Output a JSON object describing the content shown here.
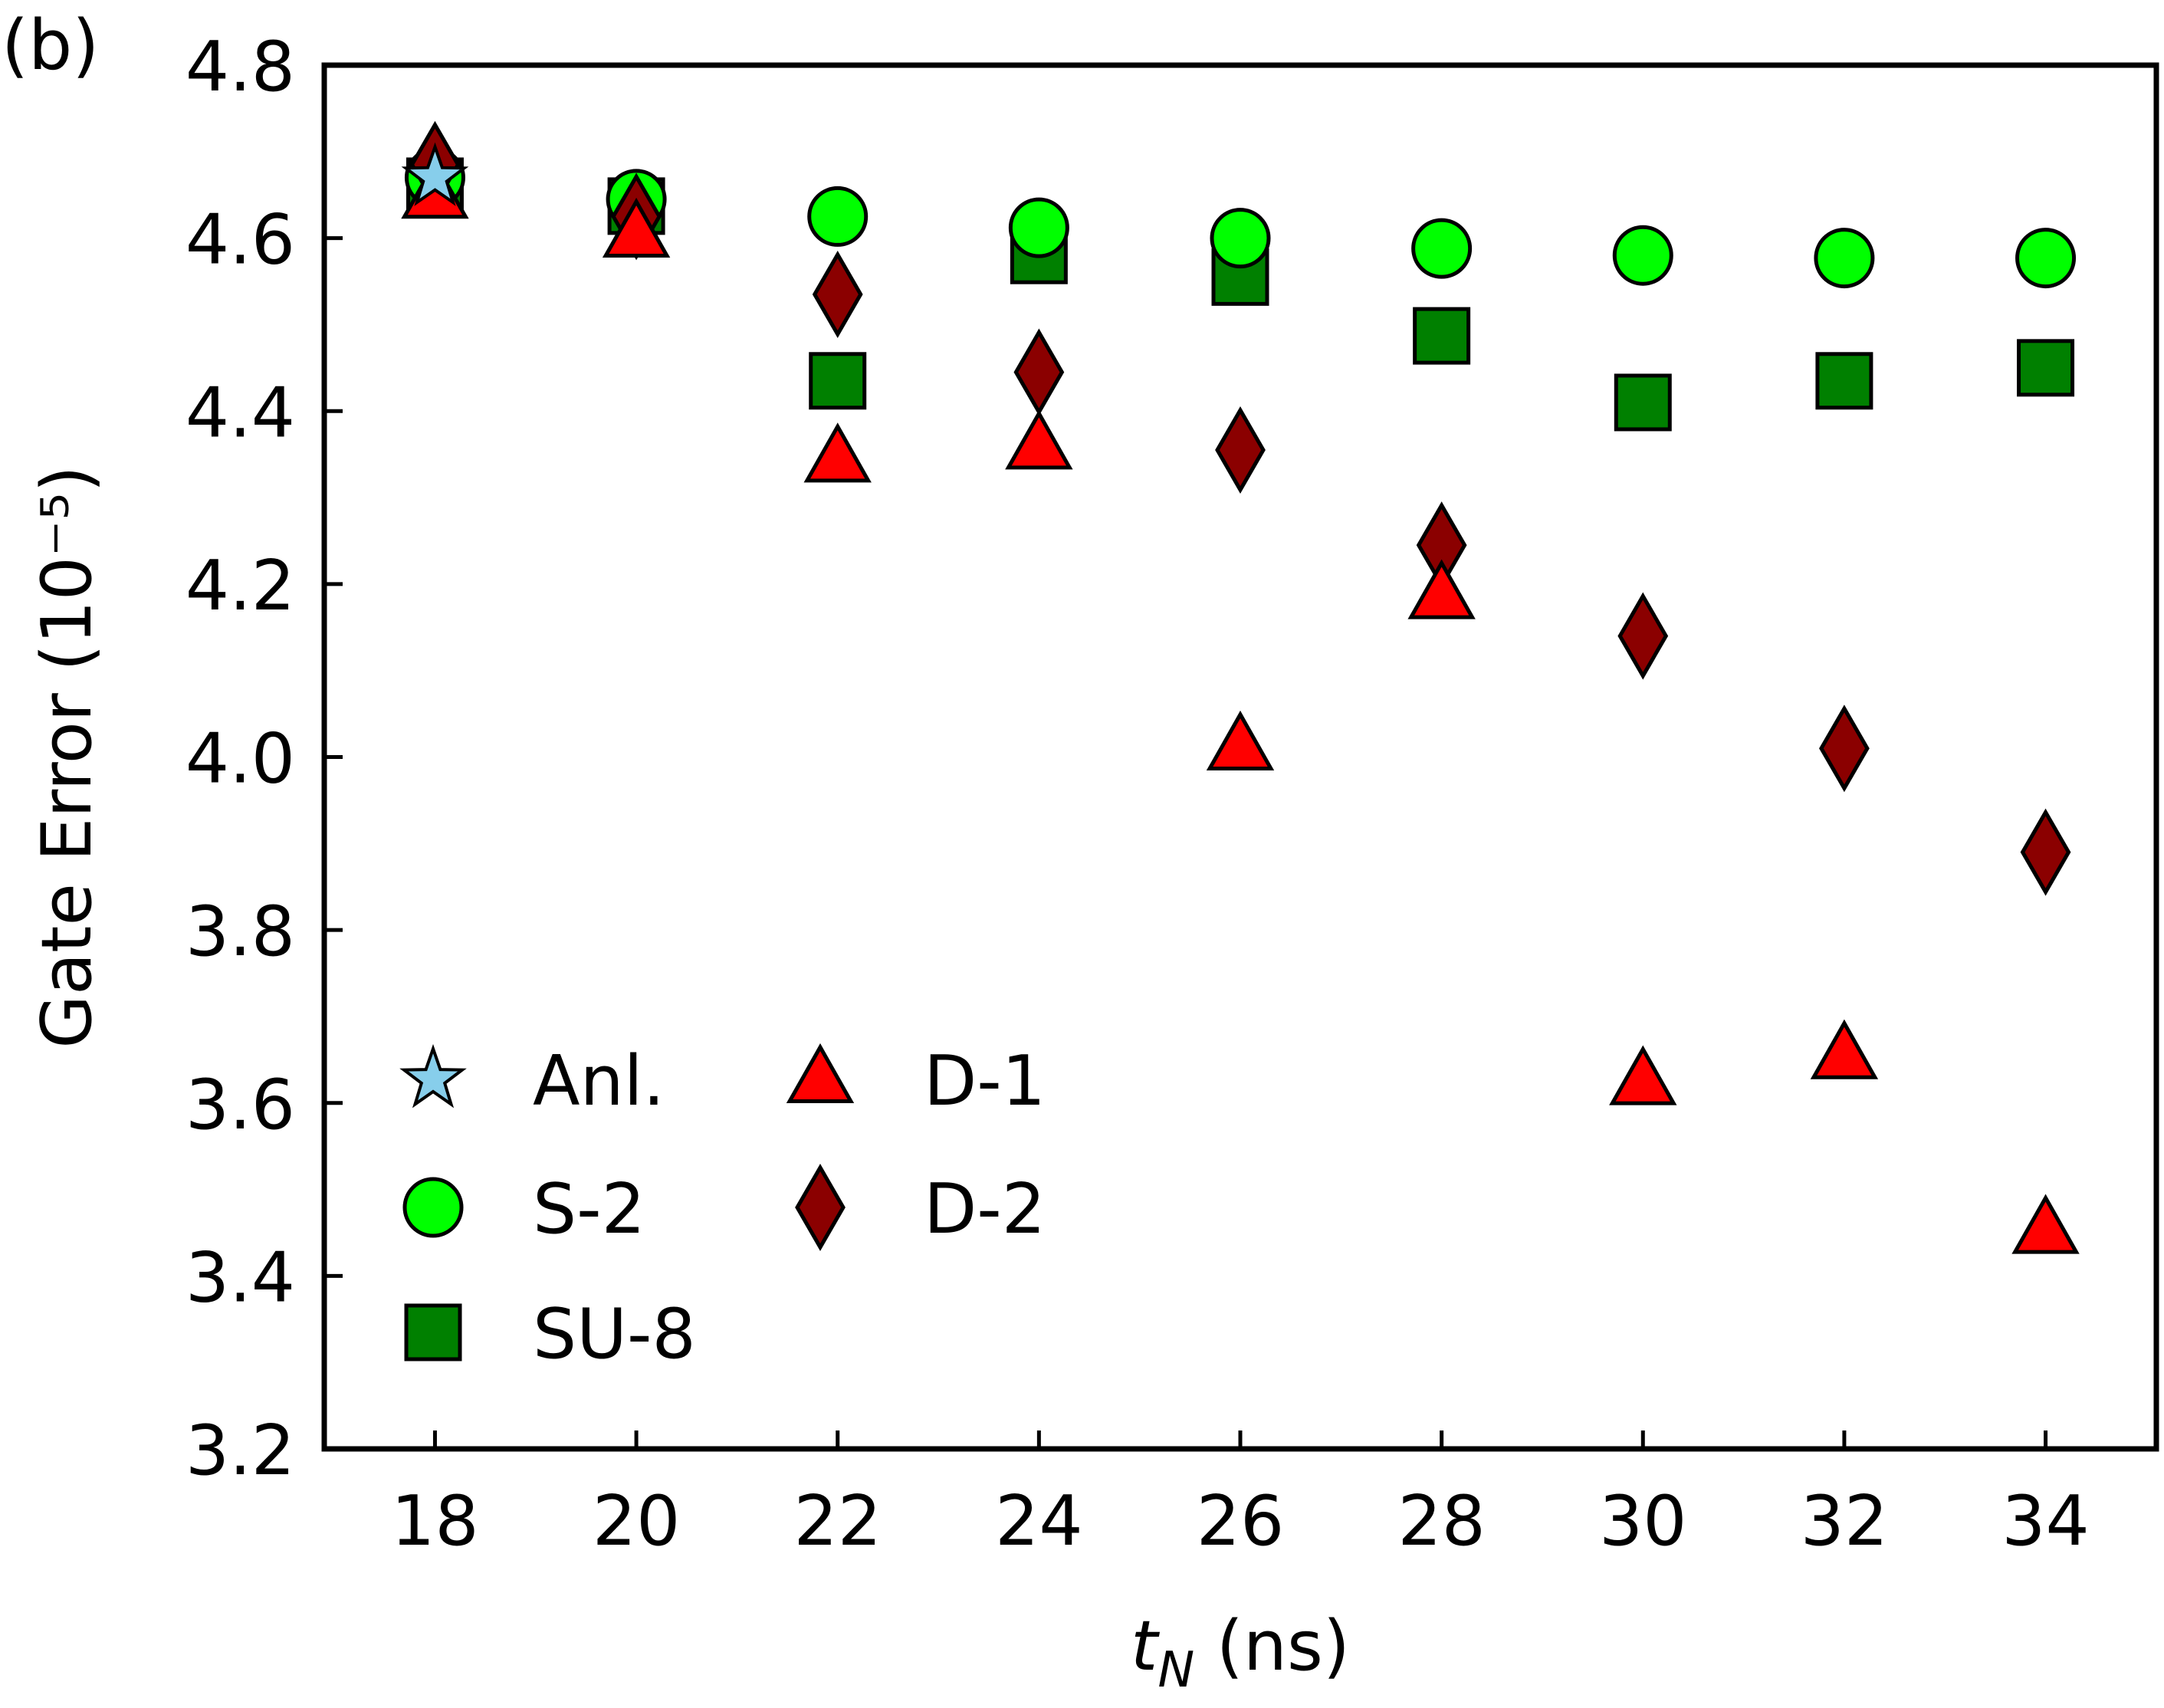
{
  "chart_data": {
    "type": "scatter",
    "panel_label": "(b)",
    "xlabel_var": "t",
    "xlabel_sub": "N",
    "xlabel_unit": " (ns)",
    "ylabel": "Gate Error (10⁻⁵)",
    "xlim": [
      16.9,
      35.1
    ],
    "ylim": [
      3.2,
      4.8
    ],
    "xticks": [
      18,
      20,
      22,
      24,
      26,
      28,
      30,
      32,
      34
    ],
    "xtick_labels": [
      "18",
      "20",
      "22",
      "24",
      "26",
      "28",
      "30",
      "32",
      "34"
    ],
    "yticks": [
      3.2,
      3.4,
      3.6,
      3.8,
      4.0,
      4.2,
      4.4,
      4.6,
      4.8
    ],
    "ytick_labels": [
      "3.2",
      "3.4",
      "3.6",
      "3.8",
      "4.0",
      "4.2",
      "4.4",
      "4.6",
      "4.8"
    ],
    "grid": false,
    "legend_position": "lower-left",
    "series": [
      {
        "name": "Anl.",
        "marker": "star",
        "color": "#87ceeb",
        "x": [
          18
        ],
        "y": [
          4.67
        ]
      },
      {
        "name": "S-2",
        "marker": "circle",
        "color": "#00ff00",
        "x": [
          18,
          20,
          22,
          24,
          26,
          28,
          30,
          32,
          34
        ],
        "y": [
          4.67,
          4.645,
          4.625,
          4.612,
          4.6,
          4.588,
          4.58,
          4.577,
          4.577
        ]
      },
      {
        "name": "SU-8",
        "marker": "square",
        "color": "#008000",
        "x": [
          18,
          20,
          22,
          24,
          26,
          28,
          30,
          32,
          34
        ],
        "y": [
          4.66,
          4.637,
          4.435,
          4.58,
          4.555,
          4.487,
          4.41,
          4.435,
          4.45
        ]
      },
      {
        "name": "D-1",
        "marker": "triangle",
        "color": "#ff0000",
        "x": [
          18,
          20,
          22,
          24,
          26,
          28,
          30,
          32,
          34
        ],
        "y": [
          4.65,
          4.605,
          4.345,
          4.36,
          4.012,
          4.187,
          3.625,
          3.655,
          3.453
        ]
      },
      {
        "name": "D-2",
        "marker": "diamond",
        "color": "#8b0000",
        "x": [
          18,
          20,
          22,
          24,
          26,
          28,
          30,
          32,
          34
        ],
        "y": [
          4.685,
          4.625,
          4.535,
          4.445,
          4.355,
          4.245,
          4.14,
          4.01,
          3.89
        ]
      }
    ]
  }
}
